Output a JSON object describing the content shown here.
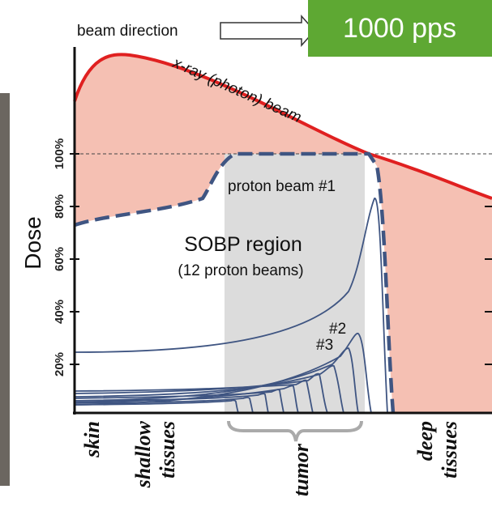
{
  "header": {
    "badge": "1000 pps",
    "beam_direction": "beam direction"
  },
  "axis": {
    "y_label": "Dose",
    "y_ticks": [
      "100%",
      "80%",
      "60%",
      "40%",
      "20%"
    ]
  },
  "annotations": {
    "xray": "x-ray (photon) beam",
    "proton1": "proton beam #1",
    "sobp": "SOBP region",
    "sobp_note": "(12 proton beams)",
    "p2": "#2",
    "p3": "#3"
  },
  "depth_labels": [
    "skin",
    "shallow tissues",
    "tumor",
    "deep tissues"
  ]
}
